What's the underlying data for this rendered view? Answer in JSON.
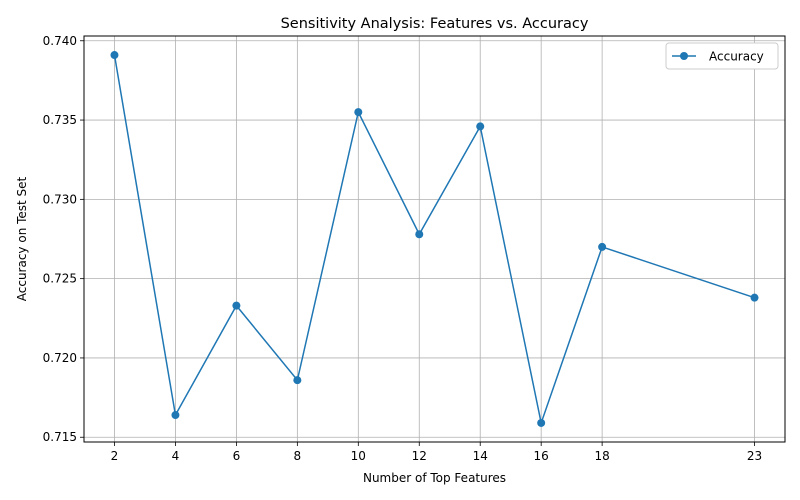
{
  "chart_data": {
    "type": "line",
    "title": "Sensitivity Analysis: Features vs. Accuracy",
    "xlabel": "Number of Top Features",
    "ylabel": "Accuracy on Test Set",
    "x": [
      2,
      4,
      6,
      8,
      10,
      12,
      14,
      16,
      18,
      23
    ],
    "x_ticks": [
      "2",
      "4",
      "6",
      "8",
      "10",
      "12",
      "14",
      "16",
      "18",
      "23"
    ],
    "y_ticks": [
      "0.715",
      "0.720",
      "0.725",
      "0.730",
      "0.735",
      "0.740"
    ],
    "series": [
      {
        "name": "Accuracy",
        "values": [
          0.7391,
          0.7164,
          0.7233,
          0.7186,
          0.7355,
          0.7278,
          0.7346,
          0.7159,
          0.727,
          0.7238
        ],
        "color": "#1f77b4",
        "marker": "circle"
      }
    ],
    "xlim": [
      1.0,
      24.0
    ],
    "ylim": [
      0.7147,
      0.7403
    ],
    "grid": true,
    "legend_position": "top-right"
  }
}
